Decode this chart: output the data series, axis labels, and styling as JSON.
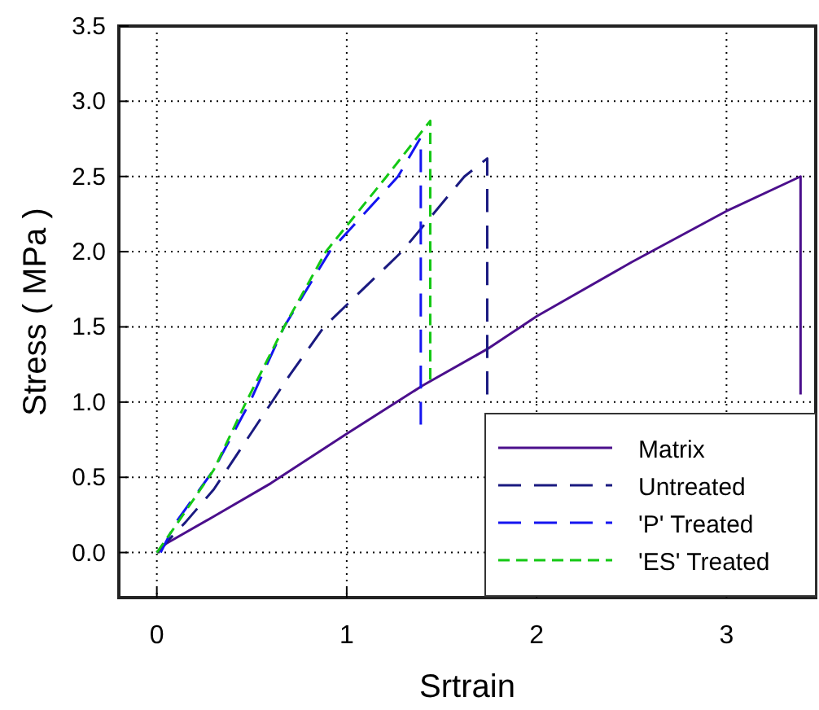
{
  "chart_data": {
    "type": "line",
    "xlabel": "Srtrain",
    "ylabel": "Stress ( MPa )",
    "xlim": [
      -0.2,
      3.47
    ],
    "ylim": [
      -0.3,
      3.5
    ],
    "xticks": [
      0,
      1,
      2,
      3
    ],
    "yticks": [
      {
        "value": 0,
        "label": "0.0"
      },
      {
        "value": 0.5,
        "label": "0.5"
      },
      {
        "value": 1,
        "label": "1.0"
      },
      {
        "value": 1.5,
        "label": "1.5"
      },
      {
        "value": 2,
        "label": "2.0"
      },
      {
        "value": 2.5,
        "label": "2.5"
      },
      {
        "value": 3,
        "label": "3.0"
      },
      {
        "value": 3.5,
        "label": "3.5"
      }
    ],
    "grid": true,
    "legend": "bottom right",
    "marker": "none",
    "series": [
      {
        "name": "Matrix",
        "color": "#4b0f8c",
        "line_style": "solid",
        "x": [
          0,
          0.05,
          0.3,
          0.6,
          1,
          1.4,
          1.75,
          2,
          2.5,
          3,
          3.39,
          3.39
        ],
        "values": [
          0,
          0.06,
          0.24,
          0.46,
          0.79,
          1.11,
          1.36,
          1.57,
          1.93,
          2.27,
          2.5,
          1.05
        ]
      },
      {
        "name": "Untreated",
        "color": "#1a1a80",
        "line_style": "dashed",
        "x": [
          0,
          0.15,
          0.3,
          0.5,
          0.7,
          0.88,
          1.29,
          1.62,
          1.74,
          1.74
        ],
        "values": [
          0,
          0.2,
          0.42,
          0.8,
          1.18,
          1.5,
          2.0,
          2.5,
          2.62,
          1.05
        ]
      },
      {
        "name": "'P' Treated",
        "color": "#1414f0",
        "line_style": "dashed",
        "x": [
          0.02,
          0.1,
          0.3,
          0.49,
          0.67,
          0.91,
          1.27,
          1.39,
          1.39
        ],
        "values": [
          0,
          0.2,
          0.55,
          1.0,
          1.5,
          2.0,
          2.5,
          2.76,
          0.85
        ]
      },
      {
        "name": "'ES' Treated",
        "color": "#14c814",
        "line_style": "dotted",
        "x": [
          0,
          0.1,
          0.3,
          0.47,
          0.67,
          0.89,
          1.21,
          1.44,
          1.44
        ],
        "values": [
          0,
          0.18,
          0.55,
          1.0,
          1.5,
          2.0,
          2.5,
          2.87,
          1.15
        ]
      }
    ]
  }
}
